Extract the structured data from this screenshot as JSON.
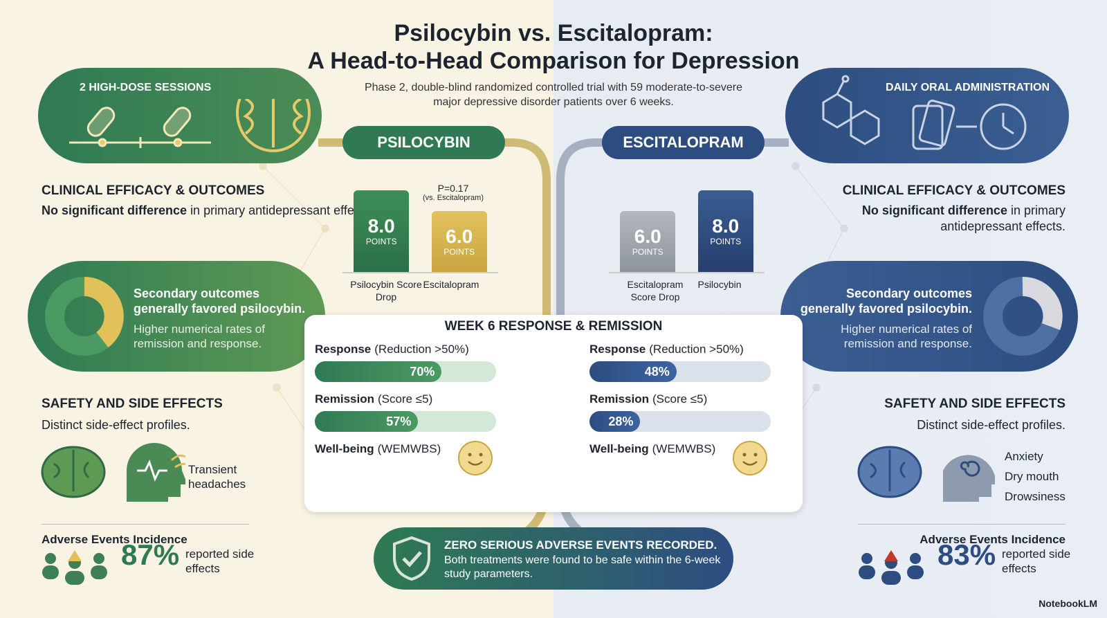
{
  "header": {
    "title": [
      "Psilocybin vs. Escitalopram:",
      "A Head-to-Head Comparison for Depression"
    ],
    "subtitle": "Phase 2, double-blind randomized controlled trial with 59 moderate-to-severe major depressive disorder patients over 6 weeks."
  },
  "left": {
    "banner": "2 HIGH-DOSE SESSIONS",
    "pill": "PSILOCYBIN",
    "efficacy": {
      "heading": "CLINICAL EFFICACY & OUTCOMES",
      "bold": "No significant difference",
      "rest": "in primary antidepressant effects."
    },
    "score_chart": {
      "p_value": "P=0.17",
      "p_note": "(vs. Escitalopram)",
      "unit": "POINTS",
      "bars": [
        {
          "value": 8,
          "label": "8.0",
          "name": "Psilocybin Score Drop"
        },
        {
          "value": 6,
          "label": "6.0",
          "name": "Escitalopram"
        }
      ]
    },
    "secondary": {
      "heading": "Secondary outcomes generally favored psilocybin.",
      "text": "Higher numerical rates of remission and response."
    },
    "safety": {
      "heading": "SAFETY AND SIDE EFFECTS",
      "subtitle": "Distinct side-effect profiles.",
      "effects": [
        "Transient headaches"
      ]
    },
    "adverse": {
      "heading": "Adverse Events Incidence",
      "value": "87%",
      "text": "reported side effects"
    }
  },
  "right": {
    "banner": "DAILY ORAL ADMINISTRATION",
    "pill": "ESCITALOPRAM",
    "efficacy": {
      "heading": "CLINICAL EFFICACY & OUTCOMES",
      "bold": "No significant difference",
      "rest": "in primary antidepressant effects."
    },
    "score_chart": {
      "unit": "POINTS",
      "bars": [
        {
          "value": 6,
          "label": "6.0",
          "name": "Escitalopram Score Drop"
        },
        {
          "value": 8,
          "label": "8.0",
          "name": "Psilocybin"
        }
      ]
    },
    "secondary": {
      "heading": "Secondary outcomes generally favored psilocybin.",
      "text": "Higher numerical rates of remission and response."
    },
    "safety": {
      "heading": "SAFETY AND SIDE EFFECTS",
      "subtitle": "Distinct side-effect profiles.",
      "effects": [
        "Anxiety",
        "Dry mouth",
        "Drowsiness"
      ]
    },
    "adverse": {
      "heading": "Adverse Events Incidence",
      "value": "83%",
      "text": "reported side effects"
    }
  },
  "week6": {
    "title": "WEEK 6 RESPONSE & REMISSION",
    "columns": [
      {
        "rows": [
          {
            "label": "Response",
            "detail": "(Reduction >50%)",
            "value": 70,
            "value_label": "70%"
          },
          {
            "label": "Remission",
            "detail": "(Score ≤5)",
            "value": 57,
            "value_label": "57%"
          },
          {
            "label": "Well-being",
            "detail": "(WEMWBS)"
          }
        ]
      },
      {
        "rows": [
          {
            "label": "Response",
            "detail": "(Reduction >50%)",
            "value": 48,
            "value_label": "48%"
          },
          {
            "label": "Remission",
            "detail": "(Score ≤5)",
            "value": 28,
            "value_label": "28%"
          },
          {
            "label": "Well-being",
            "detail": "(WEMWBS)"
          }
        ]
      }
    ]
  },
  "footer": {
    "heading": "ZERO SERIOUS ADVERSE EVENTS RECORDED.",
    "text": "Both treatments were found to be safe within the 6-week study parameters."
  },
  "brand": "NotebookLM"
}
